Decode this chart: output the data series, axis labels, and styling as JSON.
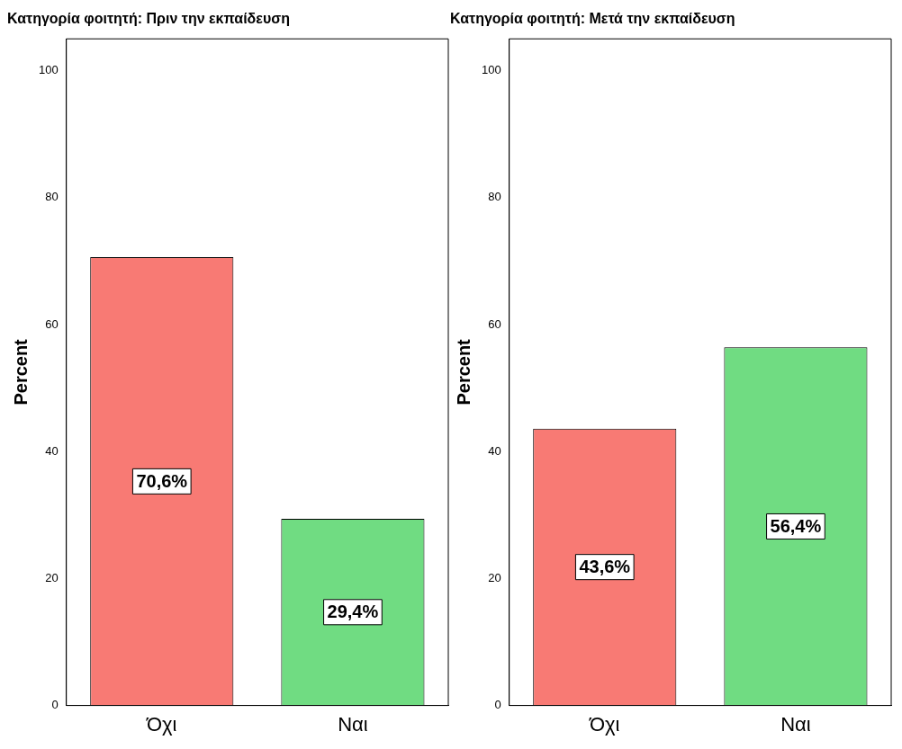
{
  "chart_data": [
    {
      "type": "bar",
      "title": "Κατηγορία φοιτητή: Πριν την εκπαίδευση",
      "ylabel": "Percent",
      "categories": [
        "Όχι",
        "Ναι"
      ],
      "values": [
        70.6,
        29.4
      ],
      "colors": [
        "#f87a74",
        "#70dc82"
      ],
      "value_labels": [
        "70,6%",
        "29,4%"
      ],
      "ylim": [
        0,
        105
      ],
      "yticks": [
        0,
        20,
        40,
        60,
        80,
        100
      ],
      "grid": false,
      "legend": false
    },
    {
      "type": "bar",
      "title": "Κατηγορία φοιτητή: Μετά την εκπαίδευση",
      "ylabel": "Percent",
      "categories": [
        "Όχι",
        "Ναι"
      ],
      "values": [
        43.6,
        56.4
      ],
      "colors": [
        "#f87a74",
        "#70dc82"
      ],
      "value_labels": [
        "43,6%",
        "56,4%"
      ],
      "ylim": [
        0,
        105
      ],
      "yticks": [
        0,
        20,
        40,
        60,
        80,
        100
      ],
      "grid": false,
      "legend": false
    }
  ]
}
